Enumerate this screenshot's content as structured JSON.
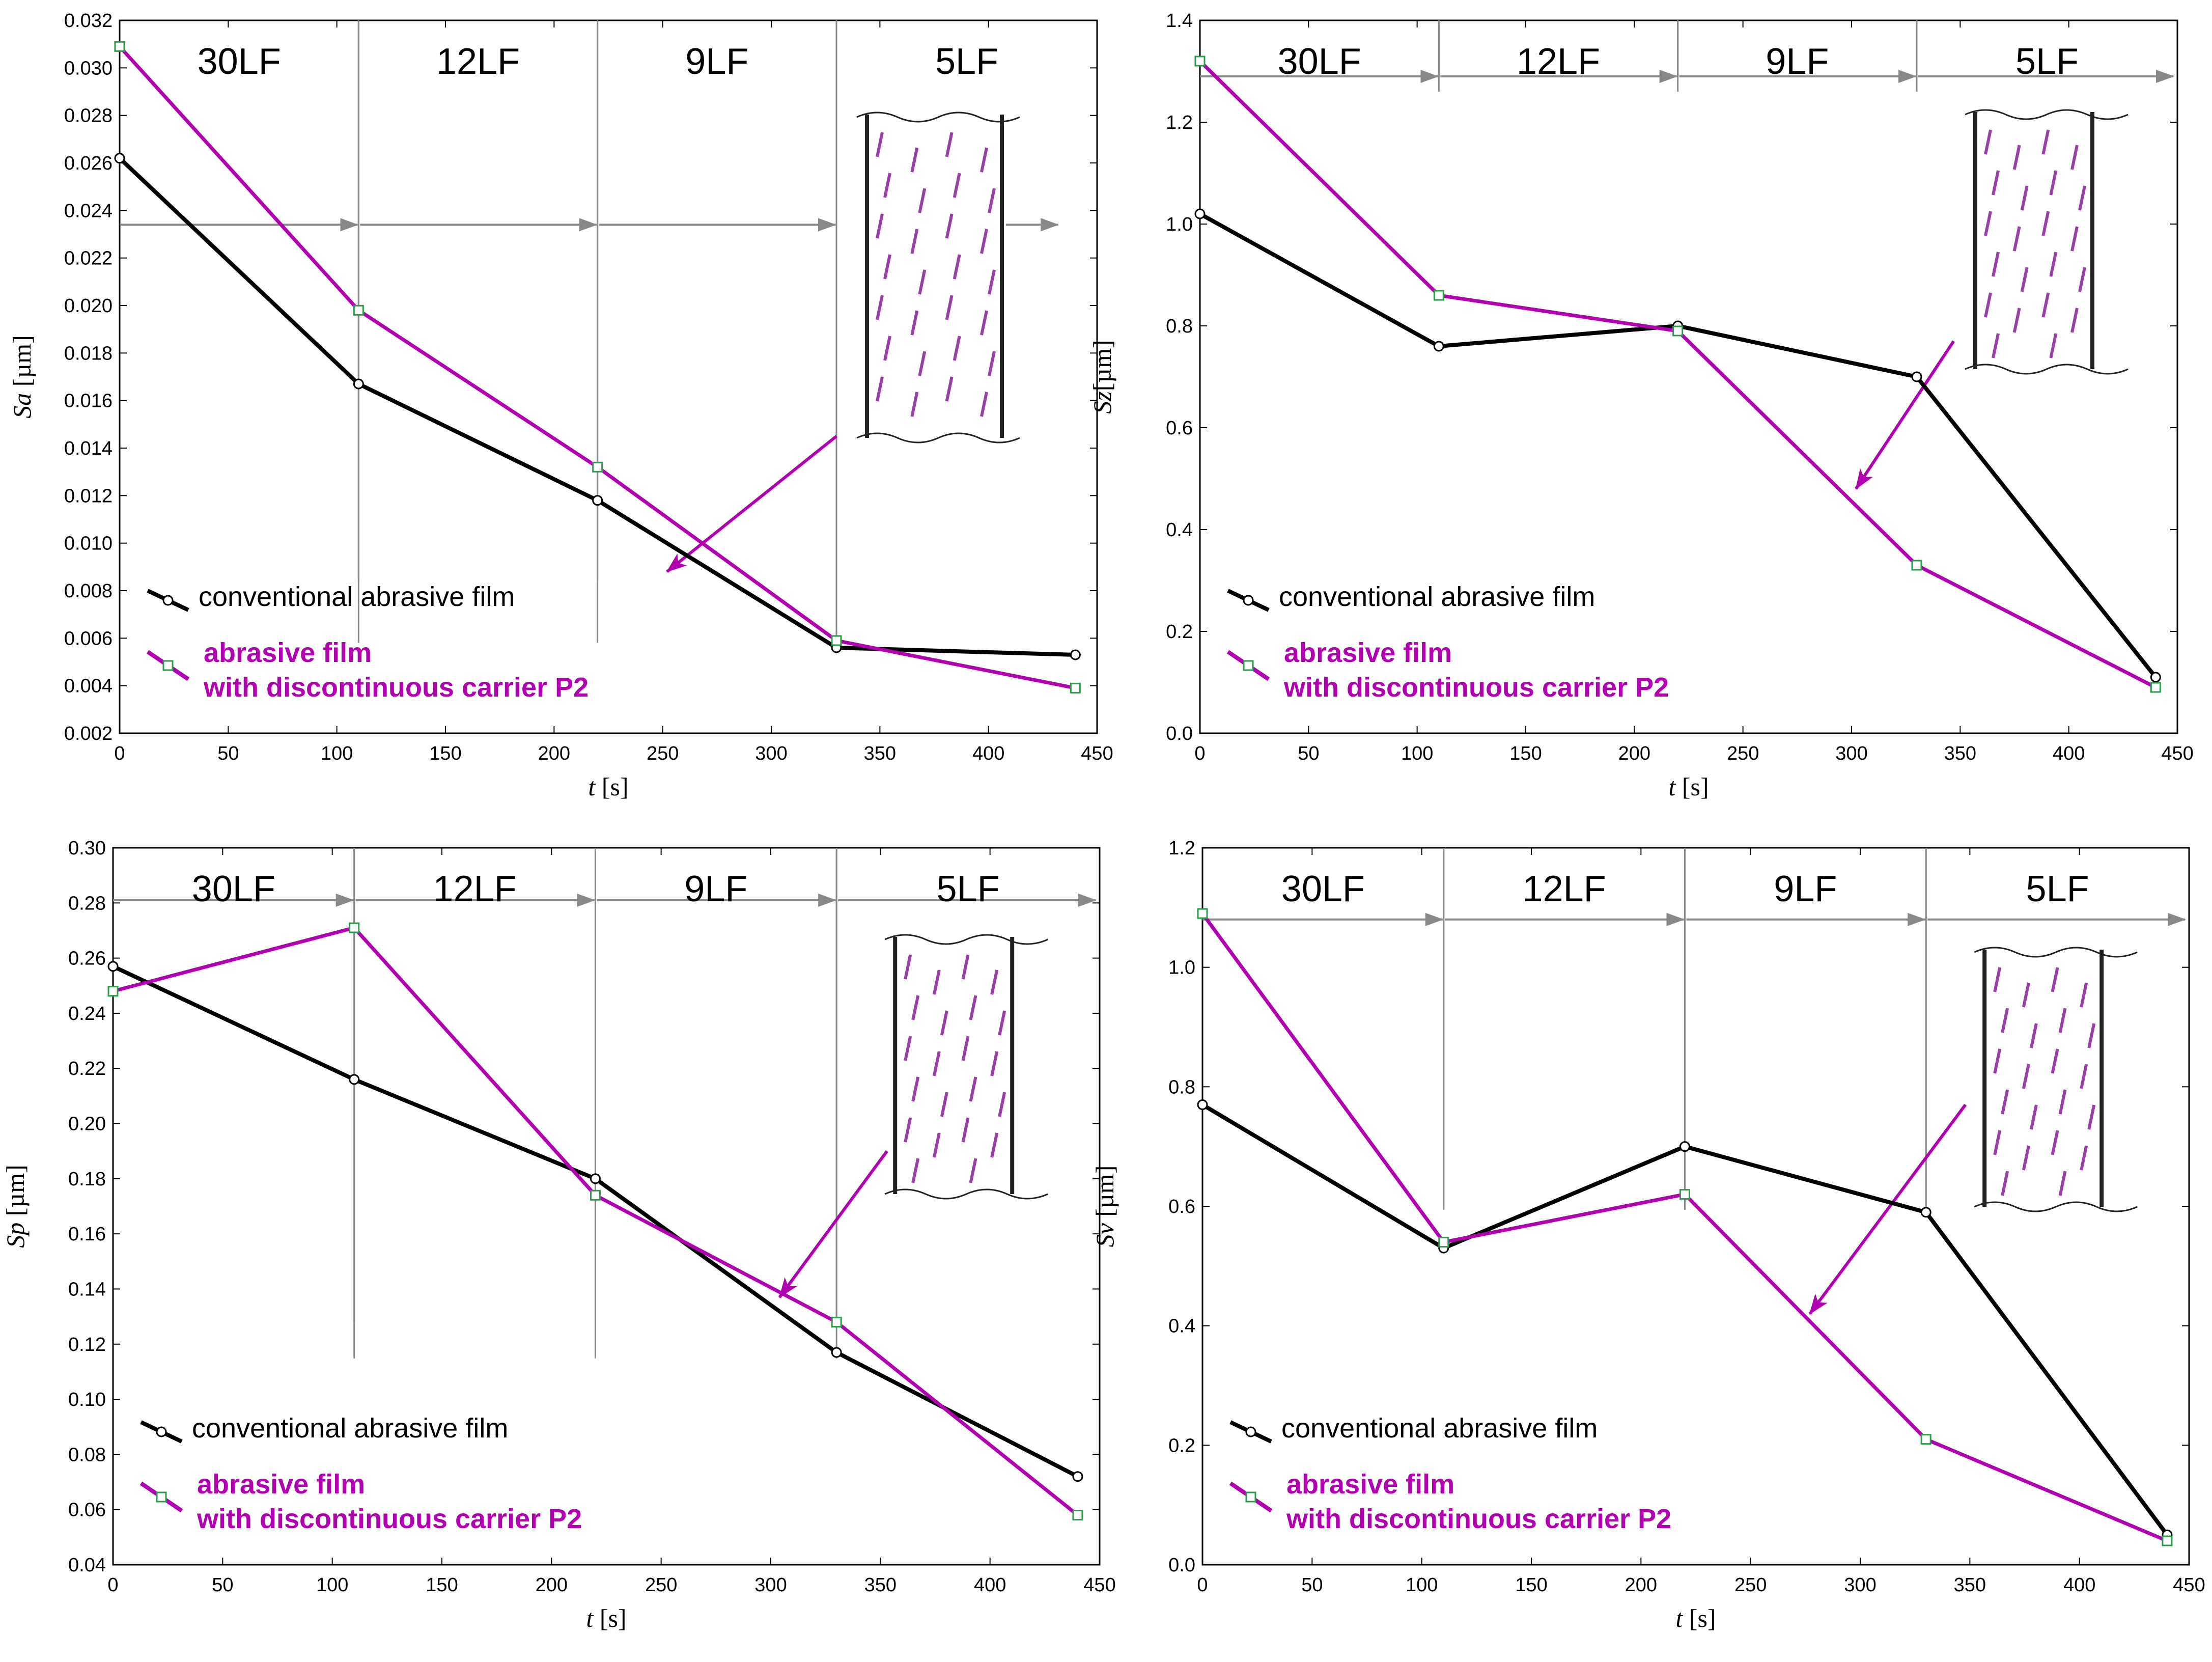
{
  "colors": {
    "conventional": "#000000",
    "p2": "#b000b0",
    "marker_p2": "#2a9d4a",
    "divider": "#888888",
    "frame": "#000000"
  },
  "legend": {
    "conventional": "conventional abrasive film",
    "p2_line1": "abrasive film",
    "p2_line2": "with discontinuous carrier P2"
  },
  "stages": [
    "30LF",
    "12LF",
    "9LF",
    "5LF"
  ],
  "chart_data": [
    {
      "type": "line",
      "id": "sa",
      "ylabel_symbol": "Sa",
      "ylabel_unit": " [µm]",
      "xlabel_symbol": "t",
      "xlabel_unit": " [s]",
      "x_ticks": [
        "0",
        "50",
        "100",
        "150",
        "200",
        "250",
        "300",
        "350",
        "400",
        "450"
      ],
      "xlim": [
        0,
        450
      ],
      "ylim": [
        0.002,
        0.032
      ],
      "y_ticks": [
        "0.002",
        "0.004",
        "0.006",
        "0.008",
        "0.010",
        "0.012",
        "0.014",
        "0.016",
        "0.018",
        "0.020",
        "0.022",
        "0.024",
        "0.026",
        "0.028",
        "0.030",
        "0.032"
      ],
      "x": [
        0,
        110,
        220,
        330,
        440
      ],
      "series": [
        {
          "name": "conventional abrasive film",
          "values": [
            0.0262,
            0.0167,
            0.0118,
            0.0056,
            0.0053
          ]
        },
        {
          "name": "abrasive film with discontinuous carrier P2",
          "values": [
            0.0309,
            0.0198,
            0.0132,
            0.0059,
            0.0039
          ]
        }
      ],
      "stage_boundaries": [
        110,
        220,
        330
      ],
      "arrow_row_value": 0.0234,
      "pointer_arrow": {
        "from": [
          330,
          0.0145
        ],
        "to": [
          252,
          0.0088
        ]
      }
    },
    {
      "type": "line",
      "id": "sz",
      "ylabel_symbol": "Sz",
      "ylabel_unit": "[µm]",
      "xlabel_symbol": "t",
      "xlabel_unit": " [s]",
      "x_ticks": [
        "0",
        "50",
        "100",
        "150",
        "200",
        "250",
        "300",
        "350",
        "400",
        "450"
      ],
      "xlim": [
        0,
        450
      ],
      "ylim": [
        0.0,
        1.4
      ],
      "y_ticks": [
        "0.0",
        "0.2",
        "0.4",
        "0.6",
        "0.8",
        "1.0",
        "1.2",
        "1.4"
      ],
      "x": [
        0,
        110,
        220,
        330,
        440
      ],
      "series": [
        {
          "name": "conventional abrasive film",
          "values": [
            1.02,
            0.76,
            0.8,
            0.7,
            0.11
          ]
        },
        {
          "name": "abrasive film with discontinuous carrier P2",
          "values": [
            1.32,
            0.86,
            0.79,
            0.33,
            0.09
          ]
        }
      ],
      "stage_boundaries": [
        110,
        220,
        330
      ],
      "arrow_row_value": 1.29,
      "pointer_arrow": {
        "from": [
          347,
          0.77
        ],
        "to": [
          302,
          0.48
        ]
      }
    },
    {
      "type": "line",
      "id": "sp",
      "ylabel_symbol": "Sp",
      "ylabel_unit": " [µm]",
      "xlabel_symbol": "t",
      "xlabel_unit": " [s]",
      "x_ticks": [
        "0",
        "50",
        "100",
        "150",
        "200",
        "250",
        "300",
        "350",
        "400",
        "450"
      ],
      "xlim": [
        0,
        450
      ],
      "ylim": [
        0.04,
        0.3
      ],
      "y_ticks": [
        "0.04",
        "0.06",
        "0.08",
        "0.10",
        "0.12",
        "0.14",
        "0.16",
        "0.18",
        "0.20",
        "0.22",
        "0.24",
        "0.26",
        "0.28",
        "0.30"
      ],
      "x": [
        0,
        110,
        220,
        330,
        440
      ],
      "series": [
        {
          "name": "conventional abrasive film",
          "values": [
            0.257,
            0.216,
            0.18,
            0.117,
            0.072
          ]
        },
        {
          "name": "abrasive film with discontinuous carrier P2",
          "values": [
            0.248,
            0.271,
            0.174,
            0.128,
            0.058
          ]
        }
      ],
      "stage_boundaries": [
        110,
        220,
        330
      ],
      "arrow_row_value": 0.281,
      "pointer_arrow": {
        "from": [
          353,
          0.19
        ],
        "to": [
          304,
          0.137
        ]
      }
    },
    {
      "type": "line",
      "id": "sv",
      "ylabel_symbol": "Sv",
      "ylabel_unit": " [µm]",
      "xlabel_symbol": "t",
      "xlabel_unit": " [s]",
      "x_ticks": [
        "0",
        "50",
        "100",
        "150",
        "200",
        "250",
        "300",
        "350",
        "400",
        "450"
      ],
      "xlim": [
        0,
        450
      ],
      "ylim": [
        0.0,
        1.2
      ],
      "y_ticks": [
        "0.0",
        "0.2",
        "0.4",
        "0.6",
        "0.8",
        "1.0",
        "1.2"
      ],
      "x": [
        0,
        110,
        220,
        330,
        440
      ],
      "series": [
        {
          "name": "conventional abrasive film",
          "values": [
            0.77,
            0.53,
            0.7,
            0.59,
            0.05
          ]
        },
        {
          "name": "abrasive film with discontinuous carrier P2",
          "values": [
            1.09,
            0.54,
            0.62,
            0.21,
            0.04
          ]
        }
      ],
      "stage_boundaries": [
        110,
        220,
        330
      ],
      "arrow_row_value": 1.08,
      "pointer_arrow": {
        "from": [
          348,
          0.77
        ],
        "to": [
          277,
          0.42
        ]
      }
    }
  ]
}
